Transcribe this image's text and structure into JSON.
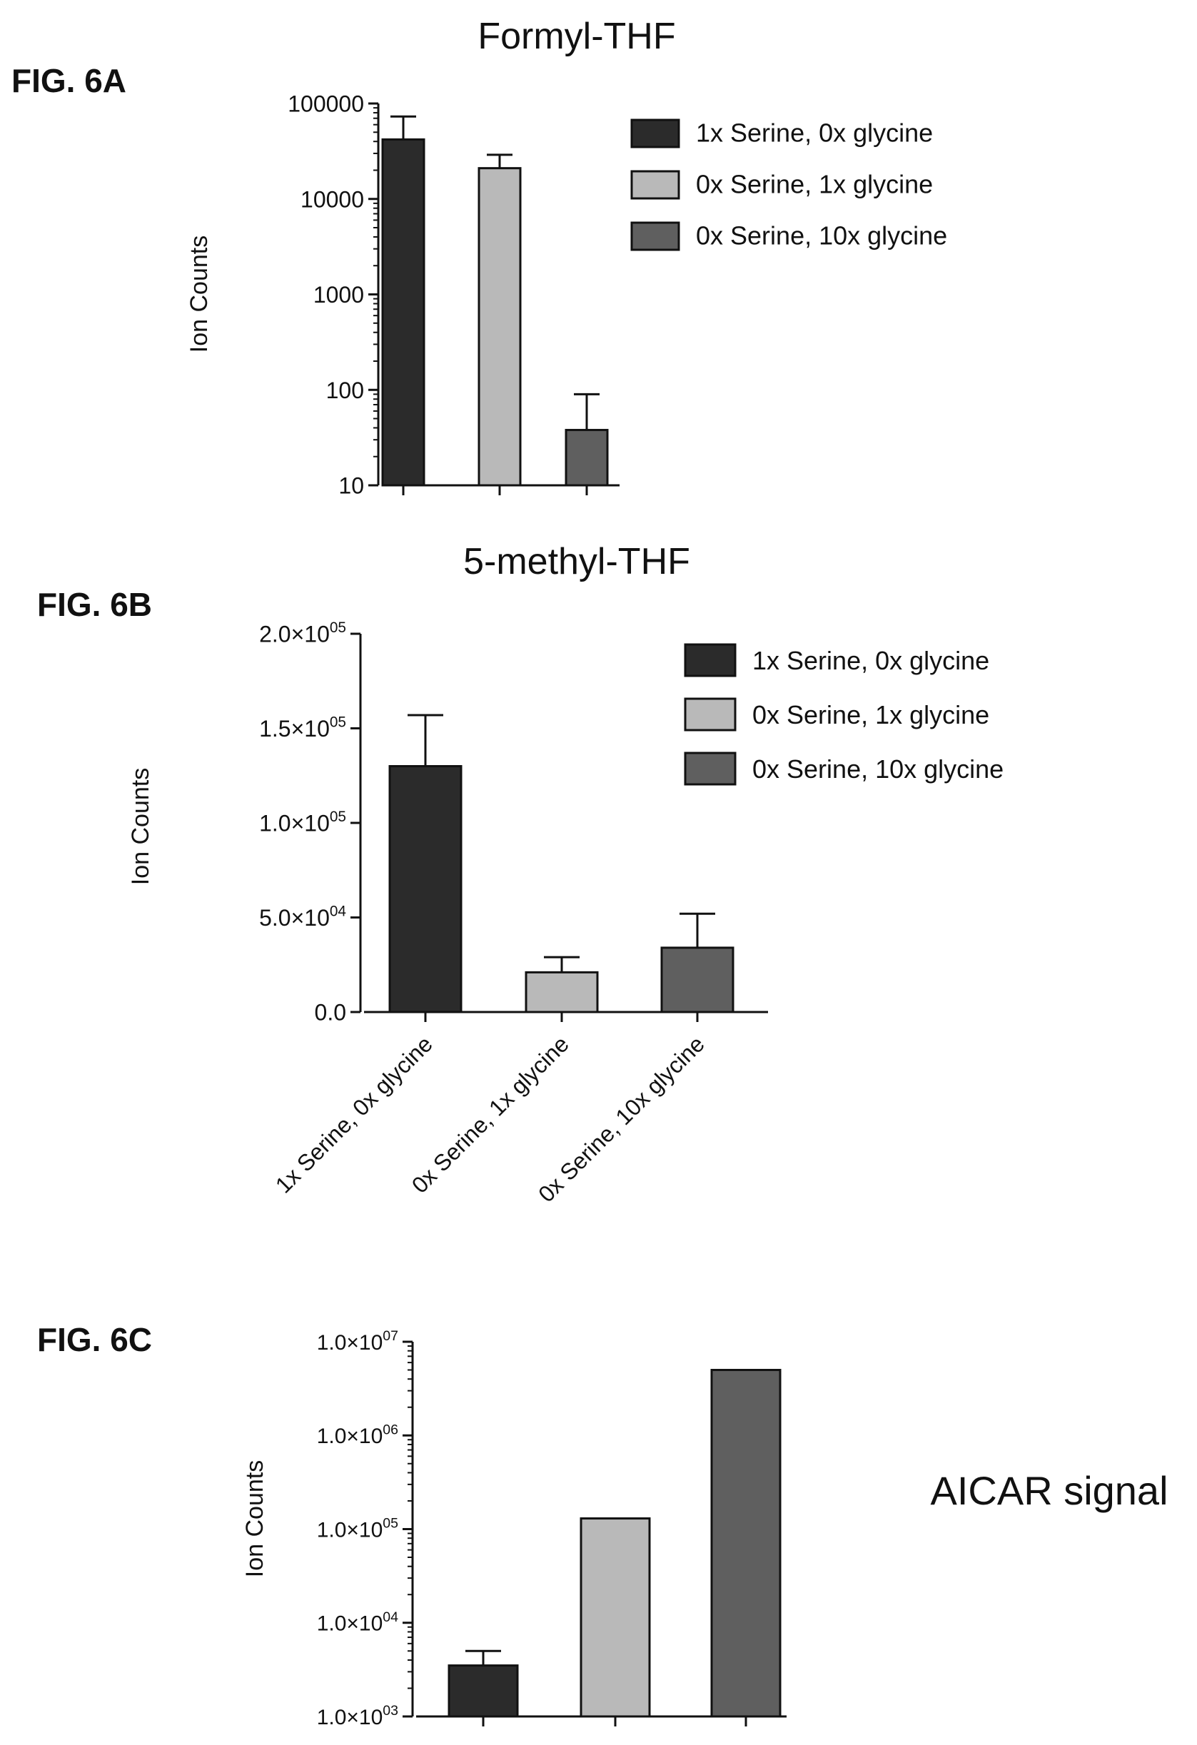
{
  "figures": {
    "a": {
      "label": "FIG. 6A"
    },
    "b": {
      "label": "FIG. 6B"
    },
    "c": {
      "label": "FIG. 6C"
    }
  },
  "colors": {
    "series_1x_serine_0x_glycine": "#2b2b2b",
    "series_0x_serine_1x_glycine": "#b9b9b9",
    "series_0x_serine_10x_glycine": "#5f5f5f",
    "axis": "#111111"
  },
  "chart_data": [
    {
      "type": "bar",
      "title": "Formyl-THF",
      "xlabel": "",
      "ylabel": "Ion Counts",
      "yscale": "log",
      "ylim": [
        10,
        100000
      ],
      "yticks": [
        10,
        100,
        1000,
        10000,
        100000
      ],
      "ytick_labels": [
        "10",
        "100",
        "1000",
        "10000",
        "100000"
      ],
      "categories": [
        "1x Serine, 0x glycine",
        "0x Serine, 1x glycine",
        "0x Serine, 10x glycine"
      ],
      "show_category_labels": false,
      "values": [
        42000,
        21000,
        38
      ],
      "error_upper": [
        73000,
        29000,
        90
      ],
      "legend": [
        "1x Serine, 0x glycine",
        "0x Serine, 1x glycine",
        "0x Serine, 10x glycine"
      ],
      "legend_position": "right",
      "grid": false
    },
    {
      "type": "bar",
      "title": "5-methyl-THF",
      "xlabel": "",
      "ylabel": "Ion Counts",
      "yscale": "linear",
      "ylim": [
        0,
        200000
      ],
      "yticks": [
        0,
        50000,
        100000,
        150000,
        200000
      ],
      "ytick_labels": [
        "0.0",
        "5.0×10",
        "1.0×10",
        "1.5×10",
        "2.0×10"
      ],
      "ytick_exponents": [
        "",
        "04",
        "05",
        "05",
        "05"
      ],
      "categories": [
        "1x Serine, 0x glycine",
        "0x Serine, 1x glycine",
        "0x Serine, 10x glycine"
      ],
      "show_category_labels": true,
      "values": [
        130000,
        21000,
        34000
      ],
      "error_upper": [
        157000,
        29000,
        52000
      ],
      "legend": [
        "1x Serine, 0x glycine",
        "0x Serine, 1x glycine",
        "0x Serine, 10x glycine"
      ],
      "legend_position": "right",
      "grid": false
    },
    {
      "type": "bar",
      "title": "AICAR signal",
      "xlabel": "",
      "ylabel": "Ion Counts",
      "yscale": "log",
      "ylim": [
        1000,
        10000000
      ],
      "yticks": [
        1000,
        10000,
        100000,
        1000000,
        10000000
      ],
      "ytick_labels": [
        "1.0×10",
        "1.0×10",
        "1.0×10",
        "1.0×10",
        "1.0×10"
      ],
      "ytick_exponents": [
        "03",
        "04",
        "05",
        "06",
        "07"
      ],
      "categories": [
        "1x Serine, 0x glycine",
        "0x Serine, 1x glycine",
        "0x Serine, 10x glycine"
      ],
      "show_category_labels": false,
      "values": [
        3500,
        130000,
        5000000
      ],
      "error_upper": [
        5000,
        null,
        null
      ],
      "legend_position": "none",
      "grid": false
    }
  ]
}
